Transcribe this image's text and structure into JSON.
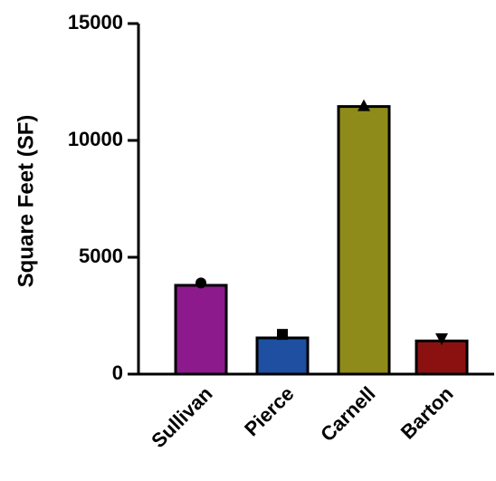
{
  "chart_data": {
    "type": "bar",
    "title": "",
    "xlabel": "",
    "ylabel": "Square Feet (SF)",
    "ylim": [
      0,
      15000
    ],
    "yticks": [
      0,
      5000,
      10000,
      15000
    ],
    "ytick_labels": [
      "0",
      "5000",
      "10000",
      "15000"
    ],
    "grid": false,
    "legend": "none",
    "categories": [
      "Sullivan",
      "Pierce",
      "Carnell",
      "Barton"
    ],
    "values": [
      3800,
      1550,
      11450,
      1420
    ],
    "points": [
      3900,
      1700,
      11450,
      1550
    ],
    "markers": [
      "circle",
      "square",
      "triangle-up",
      "triangle-down"
    ],
    "colors": [
      "#8d1a8d",
      "#1e4fa0",
      "#8f8b1b",
      "#8b1111"
    ]
  }
}
